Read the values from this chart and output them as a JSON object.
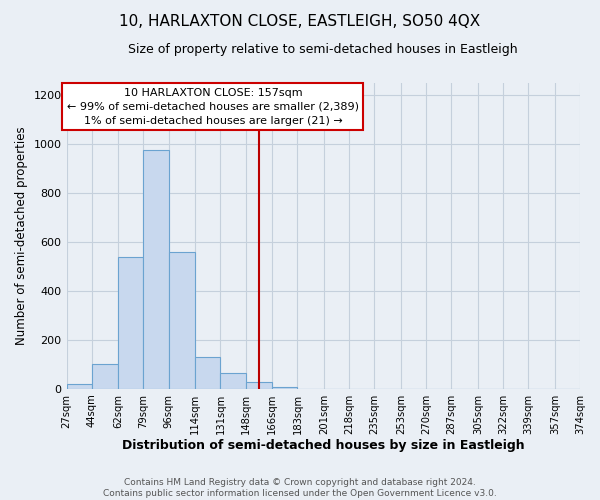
{
  "title": "10, HARLAXTON CLOSE, EASTLEIGH, SO50 4QX",
  "subtitle": "Size of property relative to semi-detached houses in Eastleigh",
  "xlabel": "Distribution of semi-detached houses by size in Eastleigh",
  "ylabel": "Number of semi-detached properties",
  "bin_edges": [
    27,
    44,
    62,
    79,
    96,
    114,
    131,
    148,
    166,
    183,
    201,
    218,
    235,
    253,
    270,
    287,
    305,
    322,
    339,
    357,
    374
  ],
  "bin_counts": [
    18,
    100,
    540,
    975,
    560,
    130,
    65,
    28,
    8,
    0,
    0,
    0,
    0,
    0,
    0,
    0,
    0,
    0,
    0,
    0
  ],
  "bar_facecolor": "#c8d8ee",
  "bar_edgecolor": "#6ba3d0",
  "vline_x": 157,
  "vline_color": "#bb0000",
  "annotation_line1": "10 HARLAXTON CLOSE: 157sqm",
  "annotation_line2": "← 99% of semi-detached houses are smaller (2,389)",
  "annotation_line3": "1% of semi-detached houses are larger (21) →",
  "annotation_box_edgecolor": "#cc0000",
  "annotation_box_facecolor": "#ffffff",
  "grid_color": "#c5d0dc",
  "background_color": "#eaeff5",
  "footer_text": "Contains HM Land Registry data © Crown copyright and database right 2024.\nContains public sector information licensed under the Open Government Licence v3.0.",
  "ylim": [
    0,
    1250
  ],
  "yticks": [
    0,
    200,
    400,
    600,
    800,
    1000,
    1200
  ],
  "tick_labels": [
    "27sqm",
    "44sqm",
    "62sqm",
    "79sqm",
    "96sqm",
    "114sqm",
    "131sqm",
    "148sqm",
    "166sqm",
    "183sqm",
    "201sqm",
    "218sqm",
    "235sqm",
    "253sqm",
    "270sqm",
    "287sqm",
    "305sqm",
    "322sqm",
    "339sqm",
    "357sqm",
    "374sqm"
  ]
}
